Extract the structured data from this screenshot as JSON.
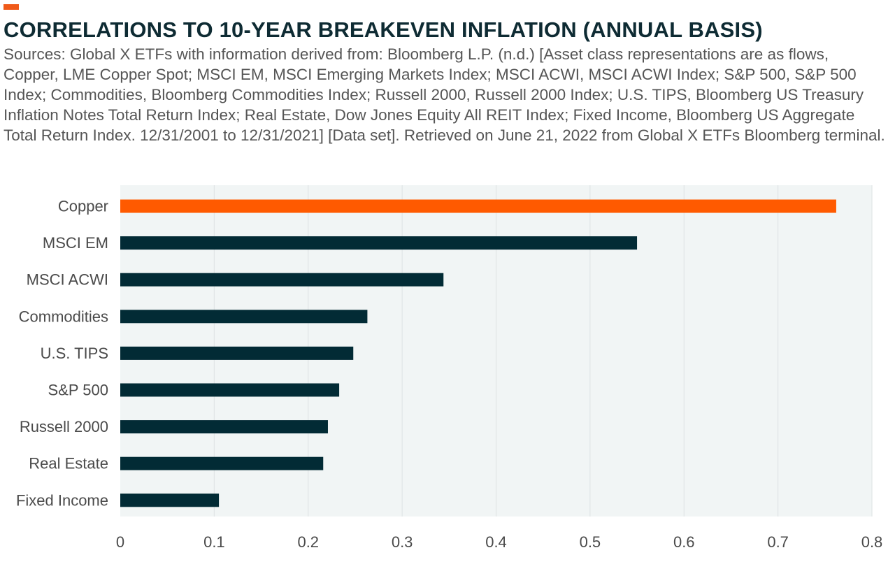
{
  "header": {
    "title": "CORRELATIONS TO 10-YEAR BREAKEVEN INFLATION (ANNUAL BASIS)",
    "subtitle": "Sources: Global X ETFs with information derived from: Bloomberg L.P. (n.d.) [Asset class representations are as flows, Copper, LME Copper Spot; MSCI EM, MSCI Emerging Markets Index; MSCI ACWI, MSCI ACWI Index; S&P 500, S&P 500 Index; Commodities, Bloomberg Commodities Index; Russell 2000, Russell 2000 Index; U.S. TIPS, Bloomberg US Treasury Inflation Notes Total Return Index; Real Estate, Dow Jones Equity All REIT Index; Fixed Income, Bloomberg US Aggregate Total Return Index. 12/31/2001 to 12/31/2021] [Data set]. Retrieved on June 21, 2022 from Global X ETFs Bloomberg terminal."
  },
  "colors": {
    "accent": "#f05a1a",
    "highlight_bar": "#ff5a00",
    "bar": "#022b35",
    "plot_background": "#f1f5f5",
    "gridline": "#dde2e3",
    "title": "#0e2b33"
  },
  "chart_data": {
    "type": "bar",
    "orientation": "horizontal",
    "title": "CORRELATIONS TO 10-YEAR BREAKEVEN INFLATION (ANNUAL BASIS)",
    "xlabel": "",
    "ylabel": "",
    "categories": [
      "Copper",
      "MSCI EM",
      "MSCI ACWI",
      "Commodities",
      "U.S. TIPS",
      "S&P 500",
      "Russell 2000",
      "Real Estate",
      "Fixed Income"
    ],
    "values": [
      0.762,
      0.55,
      0.344,
      0.263,
      0.248,
      0.233,
      0.221,
      0.216,
      0.105
    ],
    "highlighted_category": "Copper",
    "xlim": [
      0,
      0.8
    ],
    "x_ticks": [
      0,
      0.1,
      0.2,
      0.3,
      0.4,
      0.5,
      0.6,
      0.7,
      0.8
    ],
    "x_tick_labels": [
      "0",
      "0.1",
      "0.2",
      "0.3",
      "0.4",
      "0.5",
      "0.6",
      "0.7",
      "0.8"
    ],
    "grid": "vertical",
    "legend": "none"
  }
}
